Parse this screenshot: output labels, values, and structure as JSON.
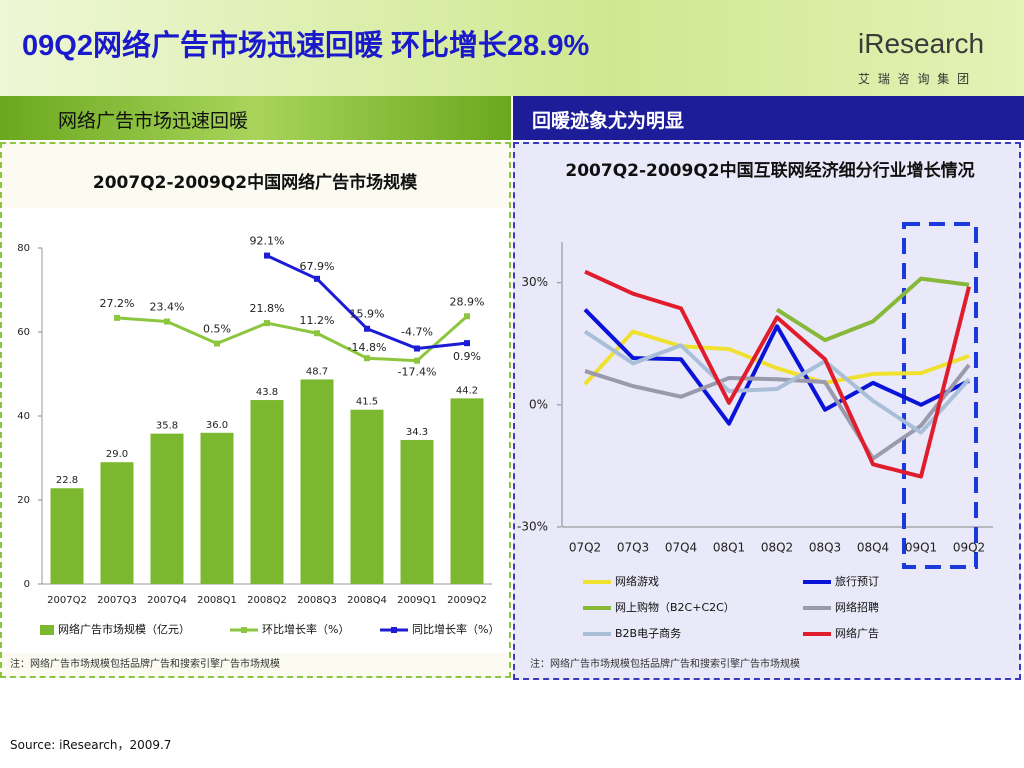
{
  "title": "09Q2网络广告市场迅速回暖 环比增长28.9%",
  "logo": {
    "name": "iResearch",
    "subtitle": "艾 瑞 咨 询 集 团"
  },
  "left_panel": {
    "header": "网络广告市场迅速回暖",
    "note": "注：网络广告市场规模包括品牌广告和搜索引擎广告市场规模"
  },
  "right_panel": {
    "header": "回暖迹象尤为明显",
    "note": "注：网络广告市场规模包括品牌广告和搜索引擎广告市场规模"
  },
  "source": "Source: iResearch，2009.7",
  "chart_data": [
    {
      "type": "bar",
      "title": "2007Q2-2009Q2中国网络广告市场规模",
      "categories": [
        "2007Q2",
        "2007Q3",
        "2007Q4",
        "2008Q1",
        "2008Q2",
        "2008Q3",
        "2008Q4",
        "2009Q1",
        "2009Q2"
      ],
      "ylim": [
        0,
        80
      ],
      "yticks": [
        0,
        20,
        40,
        60,
        80
      ],
      "y2lim": [
        -250,
        100
      ],
      "series": [
        {
          "name": "网络广告市场规模（亿元）",
          "type": "bar",
          "color": "#7cb82f",
          "values": [
            22.8,
            29.0,
            35.8,
            36.0,
            43.8,
            48.7,
            41.5,
            34.3,
            44.2
          ],
          "value_labels": [
            "22.8",
            "29.0",
            "35.8",
            "36.0",
            "43.8",
            "48.7",
            "41.5",
            "34.3",
            "44.2"
          ]
        },
        {
          "name": "环比增长率（%）",
          "type": "line",
          "axis": "y2",
          "color": "#8cc63e",
          "values": [
            null,
            27.2,
            23.4,
            0.5,
            21.8,
            11.2,
            -14.8,
            -17.4,
            28.9
          ],
          "value_labels": [
            null,
            "27.2%",
            "23.4%",
            "0.5%",
            "21.8%",
            "11.2%",
            "-14.8%",
            "-17.4%",
            "28.9%"
          ]
        },
        {
          "name": "同比增长率（%）",
          "type": "line",
          "axis": "y2",
          "color": "#1c1cd6",
          "values": [
            null,
            null,
            null,
            null,
            92.1,
            67.9,
            15.9,
            -4.7,
            0.9
          ],
          "value_labels": [
            null,
            null,
            null,
            null,
            "92.1%",
            "67.9%",
            "15.9%",
            "-4.7%",
            "0.9%"
          ]
        }
      ]
    },
    {
      "type": "line",
      "title": "2007Q2-2009Q2中国互联网经济细分行业增长情况",
      "categories": [
        "07Q2",
        "07Q3",
        "07Q4",
        "08Q1",
        "08Q2",
        "08Q3",
        "08Q4",
        "09Q1",
        "09Q2"
      ],
      "ylim": [
        -30,
        40
      ],
      "yticks": [
        {
          "value": -30,
          "label": "-30%"
        },
        {
          "value": 0,
          "label": "0%"
        },
        {
          "value": 30,
          "label": "30%"
        }
      ],
      "series": [
        {
          "name": "网络游戏",
          "color": "#f0e130",
          "values": [
            5.1,
            18,
            14.4,
            13.7,
            9,
            5.4,
            7.6,
            7.8,
            12
          ]
        },
        {
          "name": "旅行预订",
          "color": "#0a14d8",
          "values": [
            23.4,
            11.5,
            11.2,
            -4.6,
            19.3,
            -1.2,
            5.4,
            0,
            5.9
          ]
        },
        {
          "name": "网上购物（B2C+C2C）",
          "color": "#88b83a",
          "values": [
            null,
            null,
            null,
            null,
            23.4,
            15.9,
            20.5,
            31,
            29.5
          ]
        },
        {
          "name": "网络招聘",
          "color": "#9a9aac",
          "values": [
            8.3,
            4.6,
            2,
            6.6,
            6.3,
            5.6,
            -13.2,
            -5.1,
            9.8
          ]
        },
        {
          "name": "B2B电子商务",
          "color": "#a9bfd8",
          "values": [
            18,
            10.2,
            14.6,
            3.4,
            3.9,
            10.7,
            1,
            -6.8,
            6.3
          ]
        },
        {
          "name": "网络广告",
          "color": "#e01d2c",
          "values": [
            32.7,
            27.3,
            23.7,
            0.5,
            21.5,
            11.2,
            -14.6,
            -17.6,
            29
          ]
        }
      ]
    }
  ]
}
